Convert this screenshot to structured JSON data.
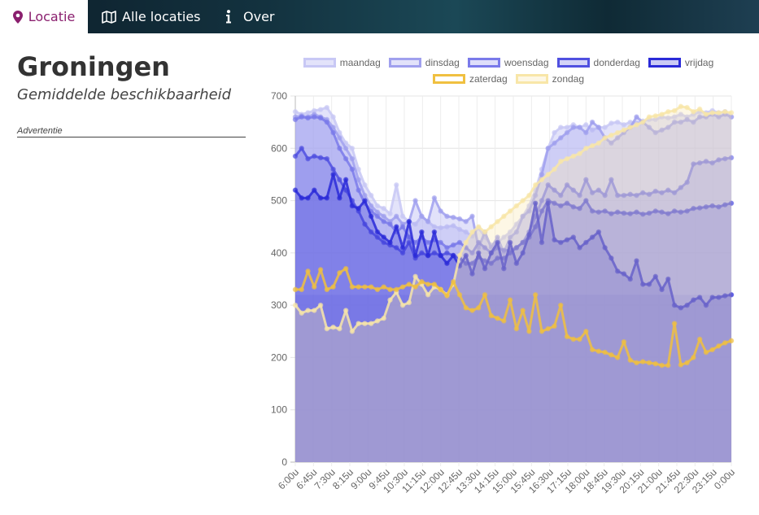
{
  "nav": {
    "tabs": [
      {
        "label": "Locatie",
        "icon": "map-pin-icon",
        "active": true
      },
      {
        "label": "Alle locaties",
        "icon": "map-icon",
        "active": false
      },
      {
        "label": "Over",
        "icon": "info-icon",
        "active": false
      }
    ],
    "accent_color": "#8a1f6e"
  },
  "page": {
    "city": "Groningen",
    "subtitle": "Gemiddelde beschikbaarheid",
    "ad_label": "Advertentie"
  },
  "chart_data": {
    "type": "line",
    "fill": true,
    "y_ticks": [
      0,
      100,
      200,
      300,
      400,
      500,
      600,
      700
    ],
    "ylim": [
      0,
      700
    ],
    "x_labels": [
      "6:00u",
      "6:45u",
      "7:30u",
      "8:15u",
      "9:00u",
      "9:45u",
      "10:30u",
      "11:15u",
      "12:00u",
      "12:45u",
      "13:30u",
      "14:15u",
      "15:00u",
      "15:45u",
      "16:30u",
      "17:15u",
      "18:00u",
      "18:45u",
      "19:30u",
      "20:15u",
      "21:00u",
      "21:45u",
      "22:30u",
      "23:15u",
      "0:00u"
    ],
    "x_step_minutes": 15,
    "grid": true,
    "legend_position": "top",
    "series": [
      {
        "name": "maandag",
        "color": "#c8c8f5",
        "fill": "rgba(200,200,245,0.5)",
        "values": [
          670,
          665,
          668,
          672,
          674,
          678,
          660,
          630,
          610,
          600,
          560,
          530,
          510,
          490,
          485,
          475,
          530,
          470,
          460,
          455,
          470,
          460,
          450,
          448,
          450,
          452,
          445,
          440,
          432,
          448,
          430,
          415,
          420,
          430,
          440,
          455,
          470,
          490,
          520,
          560,
          600,
          630,
          640,
          640,
          645,
          640,
          645,
          635,
          640,
          640,
          648,
          650,
          645,
          650,
          648,
          652,
          655,
          655,
          660,
          658,
          660,
          665,
          660,
          665,
          670,
          668,
          672,
          668,
          670,
          660
        ]
      },
      {
        "name": "dinsdag",
        "color": "#a0a0ee",
        "fill": "rgba(160,160,238,0.3)",
        "values": [
          660,
          662,
          660,
          665,
          660,
          655,
          640,
          620,
          600,
          580,
          540,
          510,
          490,
          478,
          470,
          460,
          470,
          455,
          460,
          500,
          470,
          460,
          505,
          480,
          470,
          468,
          465,
          460,
          470,
          410,
          440,
          410,
          430,
          400,
          430,
          440,
          470,
          480,
          510,
          550,
          600,
          610,
          620,
          630,
          640,
          640,
          630,
          650,
          640,
          620,
          610,
          620,
          630,
          640,
          660,
          650,
          640,
          630,
          635,
          640,
          650,
          650,
          655,
          650,
          660,
          660,
          665,
          660,
          665,
          660
        ]
      },
      {
        "name": "woensdag",
        "color": "#7a7aea",
        "fill": "rgba(122,122,234,0.25)",
        "values": [
          655,
          660,
          658,
          660,
          658,
          650,
          630,
          600,
          580,
          560,
          520,
          495,
          480,
          470,
          460,
          455,
          440,
          450,
          430,
          420,
          430,
          420,
          425,
          420,
          410,
          415,
          420,
          410,
          400,
          420,
          410,
          400,
          410,
          405,
          405,
          410,
          420,
          440,
          470,
          500,
          530,
          520,
          510,
          530,
          520,
          510,
          540,
          515,
          520,
          510,
          540,
          510,
          510,
          512,
          510,
          515,
          512,
          518,
          515,
          520,
          515,
          525,
          535,
          570,
          572,
          575,
          572,
          578,
          580,
          582
        ]
      },
      {
        "name": "donderdag",
        "color": "#5050e0",
        "fill": "rgba(80,80,224,0.25)",
        "values": [
          585,
          600,
          580,
          585,
          582,
          580,
          560,
          540,
          520,
          500,
          480,
          455,
          440,
          430,
          420,
          415,
          410,
          400,
          420,
          390,
          400,
          395,
          400,
          395,
          400,
          395,
          390,
          380,
          380,
          392,
          385,
          380,
          390,
          390,
          400,
          410,
          420,
          430,
          450,
          480,
          500,
          495,
          490,
          495,
          488,
          485,
          500,
          480,
          478,
          480,
          475,
          478,
          476,
          475,
          478,
          474,
          476,
          480,
          478,
          475,
          480,
          478,
          480,
          485,
          486,
          488,
          490,
          488,
          492,
          495
        ]
      },
      {
        "name": "vrijdag",
        "color": "#2a2ad8",
        "fill": "rgba(42,42,216,0.25)",
        "values": [
          520,
          505,
          505,
          520,
          505,
          505,
          550,
          505,
          540,
          490,
          485,
          500,
          470,
          440,
          430,
          420,
          450,
          410,
          460,
          395,
          440,
          395,
          440,
          395,
          380,
          395,
          375,
          395,
          360,
          400,
          370,
          400,
          420,
          370,
          420,
          380,
          400,
          435,
          495,
          420,
          495,
          425,
          420,
          425,
          430,
          410,
          420,
          430,
          440,
          410,
          390,
          365,
          360,
          350,
          385,
          340,
          340,
          355,
          330,
          350,
          300,
          295,
          300,
          310,
          315,
          300,
          315,
          315,
          318,
          320
        ]
      },
      {
        "name": "zaterdag",
        "color": "#f0c040",
        "fill": "rgba(240,192,64,0.0)",
        "values": [
          330,
          330,
          365,
          335,
          368,
          330,
          335,
          362,
          370,
          335,
          335,
          335,
          335,
          330,
          335,
          330,
          330,
          335,
          340,
          335,
          345,
          340,
          340,
          330,
          318,
          345,
          320,
          295,
          290,
          295,
          320,
          280,
          275,
          270,
          310,
          255,
          290,
          250,
          320,
          250,
          255,
          260,
          300,
          240,
          235,
          235,
          250,
          215,
          212,
          210,
          205,
          200,
          230,
          195,
          190,
          192,
          190,
          188,
          185,
          185,
          265,
          186,
          190,
          200,
          235,
          210,
          215,
          222,
          228,
          232
        ]
      },
      {
        "name": "zondag",
        "color": "#f8e6a8",
        "fill": "rgba(248,230,168,0.3)",
        "values": [
          300,
          285,
          290,
          290,
          300,
          255,
          258,
          255,
          290,
          250,
          265,
          265,
          265,
          270,
          275,
          310,
          325,
          300,
          305,
          355,
          340,
          320,
          335,
          330,
          320,
          340,
          395,
          420,
          440,
          450,
          440,
          450,
          460,
          470,
          480,
          490,
          500,
          510,
          530,
          540,
          550,
          560,
          575,
          580,
          585,
          590,
          600,
          605,
          610,
          620,
          625,
          630,
          635,
          640,
          645,
          650,
          660,
          662,
          665,
          670,
          672,
          680,
          678,
          670,
          675,
          665,
          668,
          668,
          670,
          668
        ]
      }
    ]
  }
}
